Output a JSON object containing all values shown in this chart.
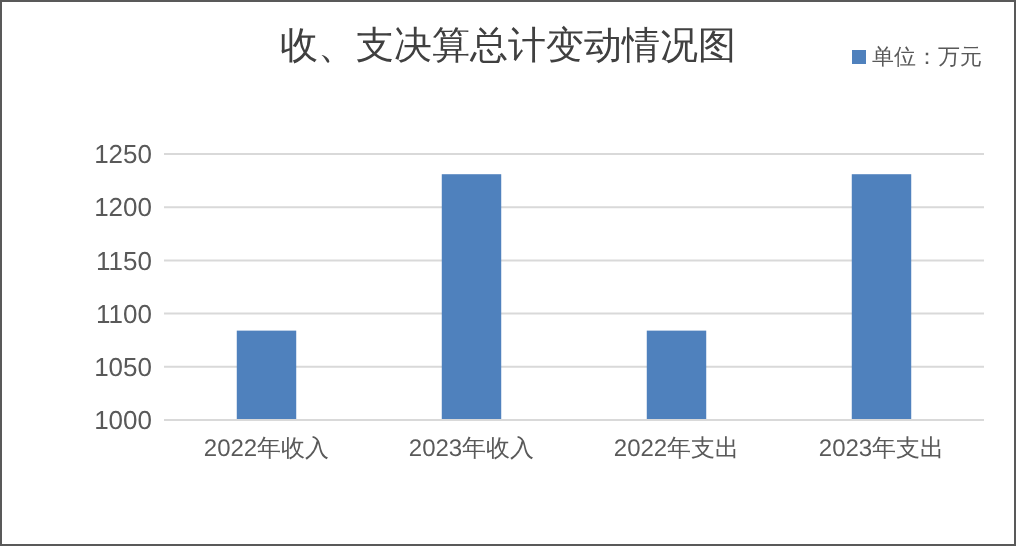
{
  "chart_data": {
    "type": "bar",
    "title": "收、支决算总计变动情况图",
    "categories": [
      "2022年收入",
      "2023年收入",
      "2022年支出",
      "2023年支出"
    ],
    "series": [
      {
        "name": "单位：万元",
        "color": "#4f81bd",
        "values": [
          1084,
          1231,
          1084,
          1231
        ]
      }
    ],
    "ylim": [
      1000,
      1250
    ],
    "yticks": [
      1000,
      1050,
      1100,
      1150,
      1200,
      1250
    ],
    "grid": "y",
    "legend": "top right"
  }
}
